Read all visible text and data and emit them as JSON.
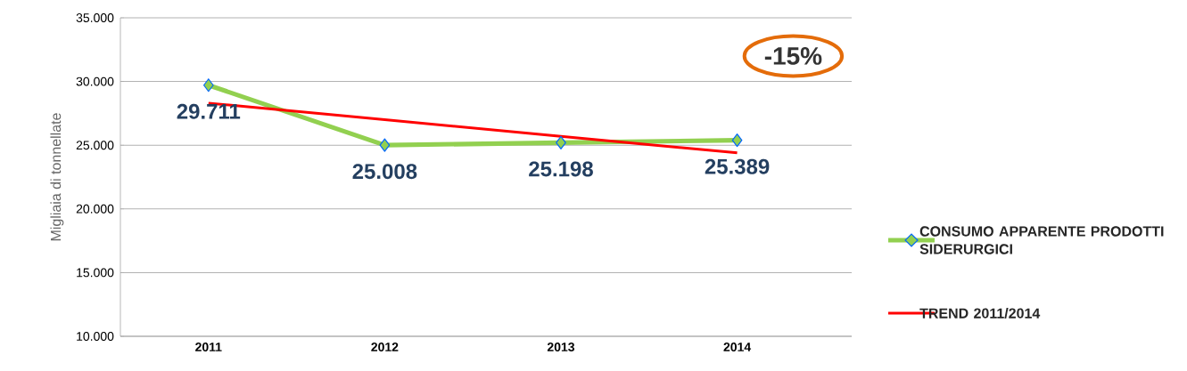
{
  "chart_data": {
    "type": "line",
    "ylabel": "Migliaia di tonnellate",
    "categories": [
      "2011",
      "2012",
      "2013",
      "2014"
    ],
    "series": [
      {
        "name": "CONSUMO APPARENTE PRODOTTI SIDERURGICI",
        "color": "#92d050",
        "marker": "diamond",
        "values": [
          29711,
          25008,
          25198,
          25389
        ],
        "value_labels": [
          "29.711",
          "25.008",
          "25.198",
          "25.389"
        ]
      },
      {
        "name": "TREND 2011/2014",
        "color": "#ff0000",
        "values": [
          28300,
          27000,
          25700,
          24400
        ]
      }
    ],
    "ylim": [
      10000,
      35000
    ],
    "yticks": [
      {
        "value": 10000,
        "label": "10.000"
      },
      {
        "value": 15000,
        "label": "15.000"
      },
      {
        "value": 20000,
        "label": "20.000"
      },
      {
        "value": 25000,
        "label": "25.000"
      },
      {
        "value": 30000,
        "label": "30.000"
      },
      {
        "value": 35000,
        "label": "35.000"
      }
    ],
    "grid": "y",
    "legend": "right",
    "annotations": [
      "-15%"
    ]
  }
}
